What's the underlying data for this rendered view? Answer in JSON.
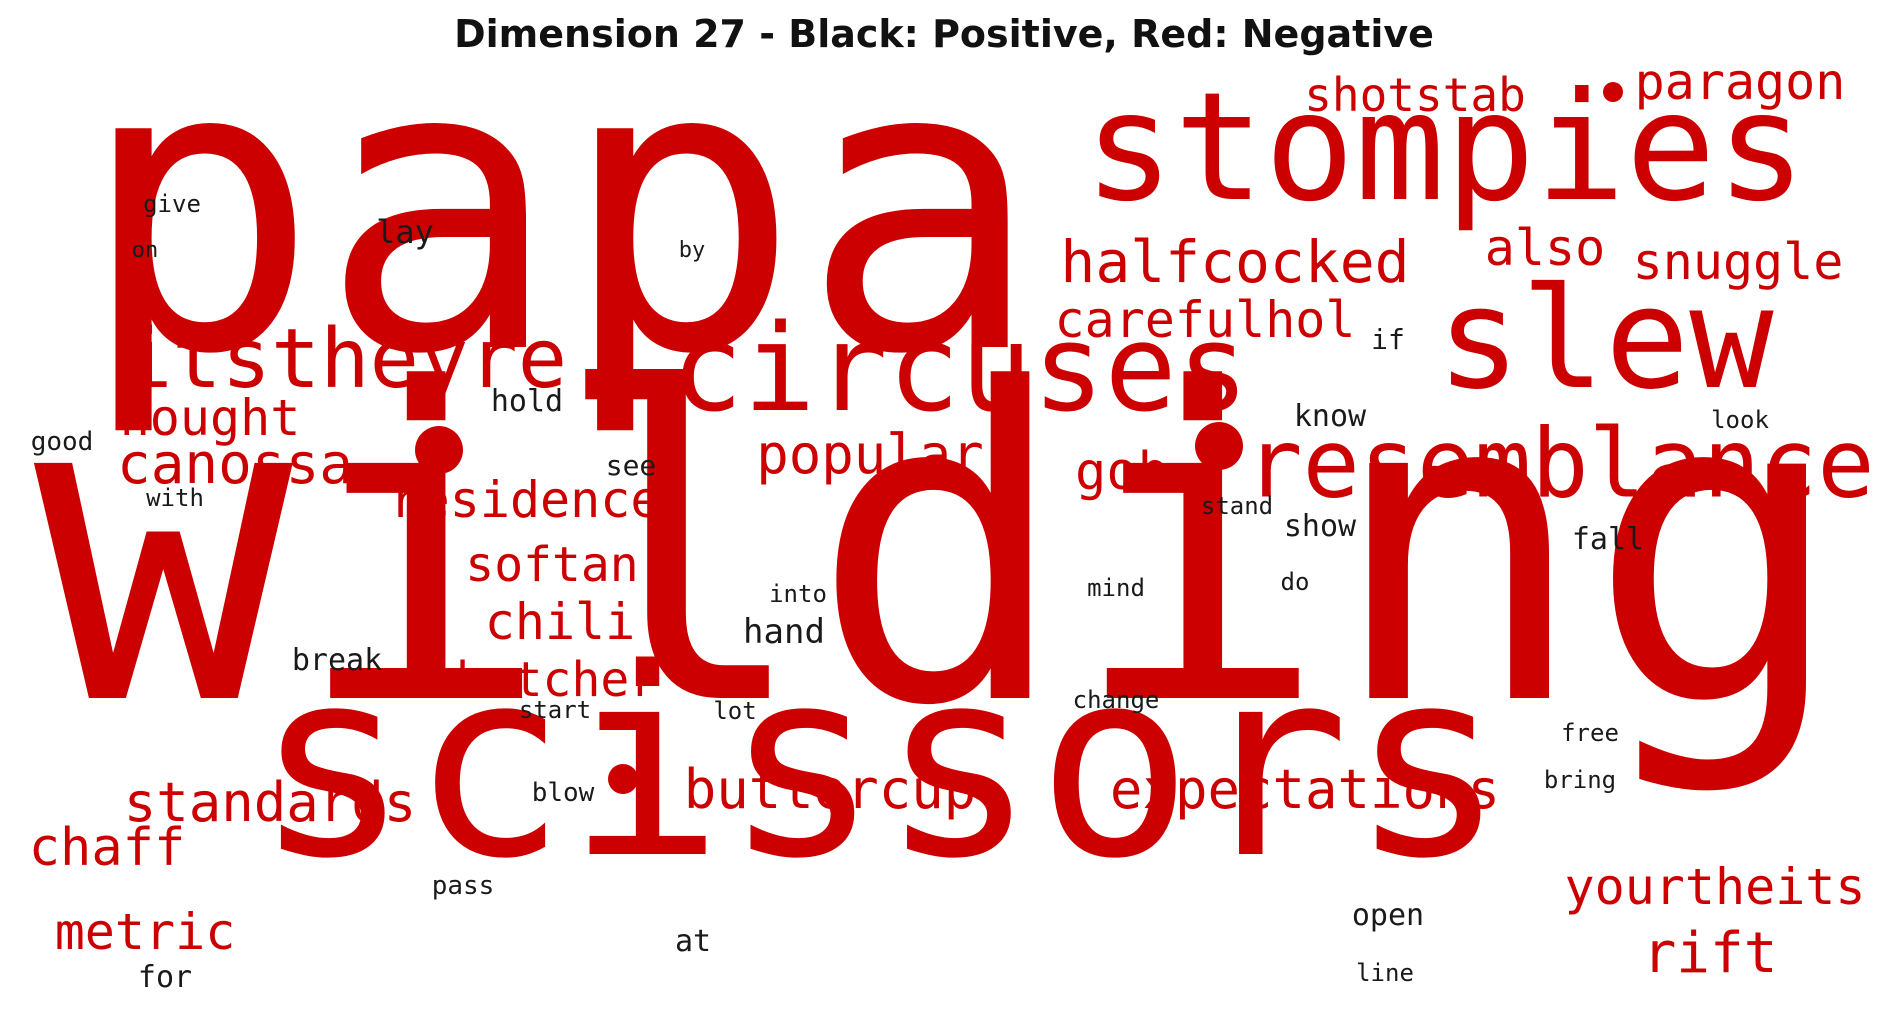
{
  "title": "Dimension 27 - Black: Positive, Red: Negative",
  "colors": {
    "positive": "#1a1a1a",
    "negative": "#cc0000"
  },
  "words": [
    {
      "text": "papa",
      "sign": "negative"
    },
    {
      "text": "wilding",
      "sign": "negative"
    },
    {
      "text": "scissors",
      "sign": "negative"
    },
    {
      "text": "stompies",
      "sign": "negative"
    },
    {
      "text": "circuses",
      "sign": "negative"
    },
    {
      "text": "slew",
      "sign": "negative"
    },
    {
      "text": "resemblance",
      "sign": "negative"
    },
    {
      "text": "itstheyre",
      "sign": "negative"
    },
    {
      "text": "halfcocked",
      "sign": "negative"
    },
    {
      "text": "shotstab",
      "sign": "negative"
    },
    {
      "text": "paragon",
      "sign": "negative"
    },
    {
      "text": "also",
      "sign": "negative"
    },
    {
      "text": "snuggle",
      "sign": "negative"
    },
    {
      "text": "carefulhol",
      "sign": "negative"
    },
    {
      "text": "nought",
      "sign": "negative"
    },
    {
      "text": "canossa",
      "sign": "negative"
    },
    {
      "text": "popular",
      "sign": "negative"
    },
    {
      "text": "gob",
      "sign": "negative"
    },
    {
      "text": "residence",
      "sign": "negative"
    },
    {
      "text": "softan",
      "sign": "negative"
    },
    {
      "text": "chili",
      "sign": "negative"
    },
    {
      "text": "butcher",
      "sign": "negative"
    },
    {
      "text": "standards",
      "sign": "negative"
    },
    {
      "text": "buttercup",
      "sign": "negative"
    },
    {
      "text": "expectations",
      "sign": "negative"
    },
    {
      "text": "chaff",
      "sign": "negative"
    },
    {
      "text": "metric",
      "sign": "negative"
    },
    {
      "text": "yourtheits",
      "sign": "negative"
    },
    {
      "text": "rift",
      "sign": "negative"
    },
    {
      "text": "give",
      "sign": "positive"
    },
    {
      "text": "on",
      "sign": "positive"
    },
    {
      "text": "lay",
      "sign": "positive"
    },
    {
      "text": "by",
      "sign": "positive"
    },
    {
      "text": "if",
      "sign": "positive"
    },
    {
      "text": "hold",
      "sign": "positive"
    },
    {
      "text": "know",
      "sign": "positive"
    },
    {
      "text": "look",
      "sign": "positive"
    },
    {
      "text": "good",
      "sign": "positive"
    },
    {
      "text": "see",
      "sign": "positive"
    },
    {
      "text": "with",
      "sign": "positive"
    },
    {
      "text": "stand",
      "sign": "positive"
    },
    {
      "text": "show",
      "sign": "positive"
    },
    {
      "text": "fall",
      "sign": "positive"
    },
    {
      "text": "into",
      "sign": "positive"
    },
    {
      "text": "mind",
      "sign": "positive"
    },
    {
      "text": "do",
      "sign": "positive"
    },
    {
      "text": "hand",
      "sign": "positive"
    },
    {
      "text": "break",
      "sign": "positive"
    },
    {
      "text": "start",
      "sign": "positive"
    },
    {
      "text": "lot",
      "sign": "positive"
    },
    {
      "text": "change",
      "sign": "positive"
    },
    {
      "text": "free",
      "sign": "positive"
    },
    {
      "text": "bring",
      "sign": "positive"
    },
    {
      "text": "blow",
      "sign": "positive"
    },
    {
      "text": "pass",
      "sign": "positive"
    },
    {
      "text": "open",
      "sign": "positive"
    },
    {
      "text": "at",
      "sign": "positive"
    },
    {
      "text": "for",
      "sign": "positive"
    },
    {
      "text": "line",
      "sign": "positive"
    }
  ]
}
